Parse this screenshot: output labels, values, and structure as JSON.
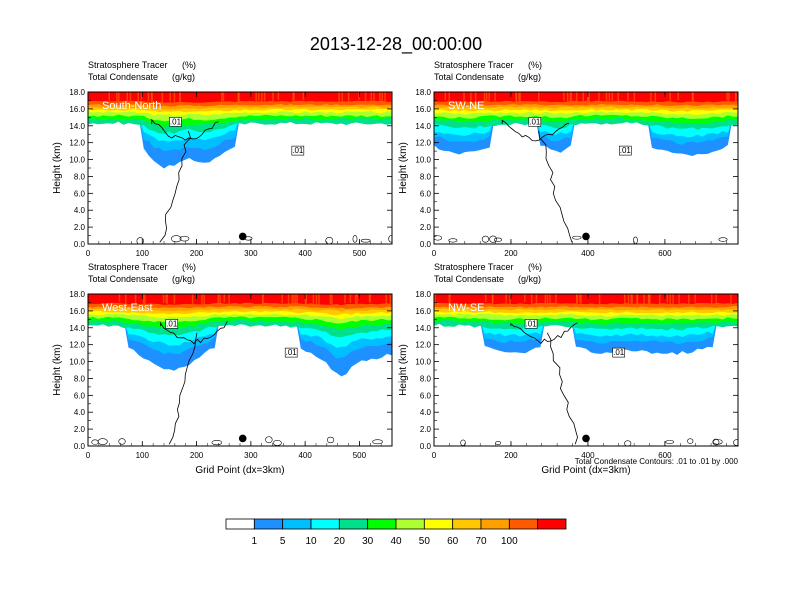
{
  "title": "2013-12-28_00:00:00",
  "colorbar": {
    "colors": [
      "#ffffff",
      "#1e90ff",
      "#00bfff",
      "#00ffff",
      "#00e08a",
      "#00ff00",
      "#adff2f",
      "#ffff00",
      "#ffc800",
      "#ffa000",
      "#ff5a00",
      "#ff0000"
    ],
    "labels": [
      "1",
      "5",
      "10",
      "20",
      "30",
      "40",
      "50",
      "60",
      "70",
      "100"
    ]
  },
  "contour_note": "Total Condensate Contours: .01 to .01 by .000",
  "chart_data": [
    {
      "type": "contour",
      "panel": "South-North",
      "subtitle_left1": "Stratosphere Tracer",
      "subtitle_right1": "(%)",
      "subtitle_left2": "Total Condensate",
      "subtitle_right2": "(g/kg)",
      "ylabel": "Height (km)",
      "xlabel": "",
      "xlim": [
        0,
        560
      ],
      "ylim": [
        0,
        18
      ],
      "xticks": [
        "0",
        "100",
        "200",
        "300",
        "400",
        "500"
      ],
      "yticks": [
        "0.0",
        "2.0",
        "4.0",
        "6.0",
        "8.0",
        "10.0",
        "12.0",
        "14.0",
        "16.0",
        "18.0"
      ],
      "contour_labels": [
        ".01",
        ".01"
      ],
      "marker_x": 285
    },
    {
      "type": "contour",
      "panel": "SW-NE",
      "subtitle_left1": "Stratosphere Tracer",
      "subtitle_right1": "(%)",
      "subtitle_left2": "Total Condensate",
      "subtitle_right2": "(g/kg)",
      "ylabel": "Height (km)",
      "xlabel": "",
      "xlim": [
        0,
        790
      ],
      "ylim": [
        0,
        18
      ],
      "xticks": [
        "0",
        "200",
        "400",
        "600"
      ],
      "yticks": [
        "0.0",
        "2.0",
        "4.0",
        "6.0",
        "8.0",
        "10.0",
        "12.0",
        "14.0",
        "16.0",
        "18.0"
      ],
      "contour_labels": [
        ".01",
        ".01"
      ],
      "marker_x": 395
    },
    {
      "type": "contour",
      "panel": "West-East",
      "subtitle_left1": "Stratosphere Tracer",
      "subtitle_right1": "(%)",
      "subtitle_left2": "Total Condensate",
      "subtitle_right2": "(g/kg)",
      "ylabel": "Height (km)",
      "xlabel": "Grid Point (dx=3km)",
      "xlim": [
        0,
        560
      ],
      "ylim": [
        0,
        18
      ],
      "xticks": [
        "0",
        "100",
        "200",
        "300",
        "400",
        "500"
      ],
      "yticks": [
        "0.0",
        "2.0",
        "4.0",
        "6.0",
        "8.0",
        "10.0",
        "12.0",
        "14.0",
        "16.0",
        "18.0"
      ],
      "contour_labels": [
        ".01",
        ".01"
      ],
      "marker_x": 285
    },
    {
      "type": "contour",
      "panel": "NW-SE",
      "subtitle_left1": "Stratosphere Tracer",
      "subtitle_right1": "(%)",
      "subtitle_left2": "Total Condensate",
      "subtitle_right2": "(g/kg)",
      "ylabel": "Height (km)",
      "xlabel": "Grid Point (dx=3km)",
      "xlim": [
        0,
        790
      ],
      "ylim": [
        0,
        18
      ],
      "xticks": [
        "0",
        "200",
        "400",
        "600"
      ],
      "yticks": [
        "0.0",
        "2.0",
        "4.0",
        "6.0",
        "8.0",
        "10.0",
        "12.0",
        "14.0",
        "16.0",
        "18.0"
      ],
      "contour_labels": [
        ".01",
        ".01"
      ],
      "marker_x": 395
    }
  ]
}
